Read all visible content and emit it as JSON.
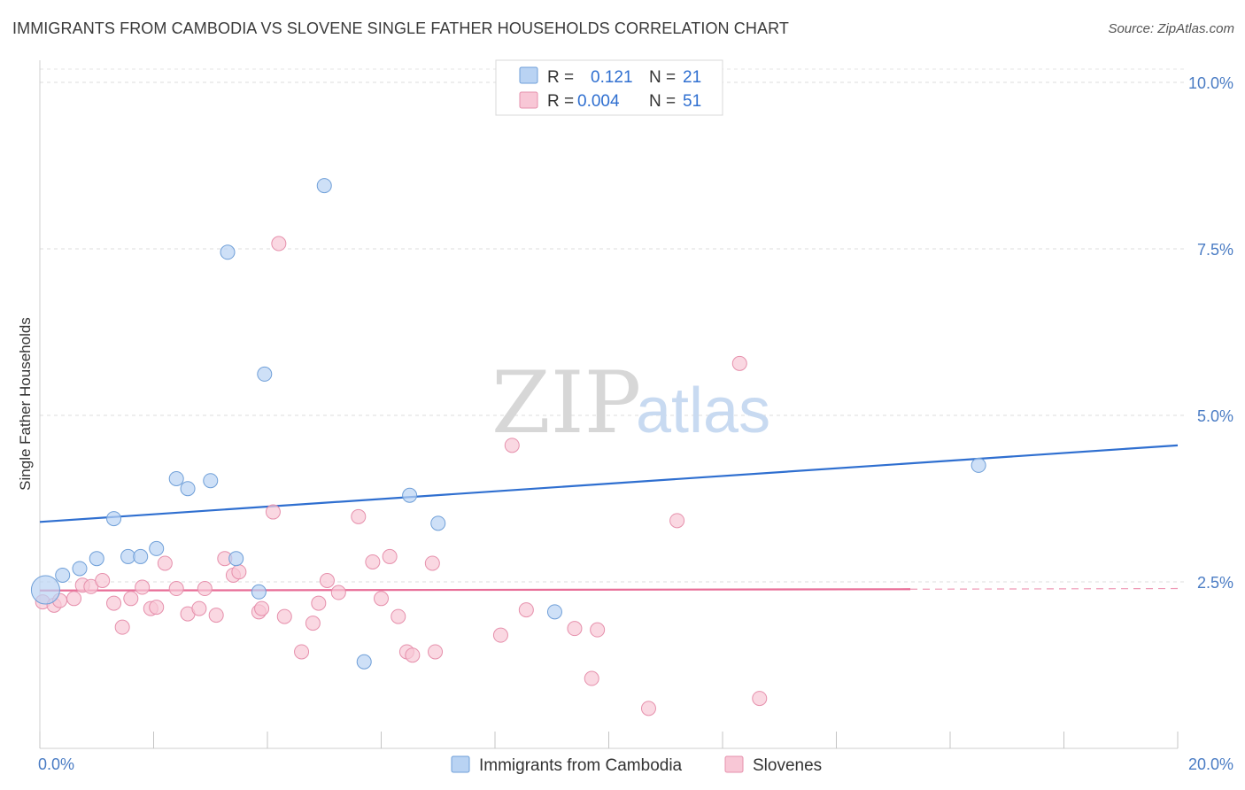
{
  "title": "IMMIGRANTS FROM CAMBODIA VS SLOVENE SINGLE FATHER HOUSEHOLDS CORRELATION CHART",
  "source": "Source: ZipAtlas.com",
  "watermark": {
    "zip": "ZIP",
    "atlas": "atlas"
  },
  "legend": {
    "rows": [
      {
        "r_label": "R =",
        "r_value": "0.121",
        "n_label": "N =",
        "n_value": "21"
      },
      {
        "r_label": "R =",
        "r_value": "0.004",
        "n_label": "N =",
        "n_value": "51"
      }
    ]
  },
  "colors": {
    "cambodia_fill": "#b9d3f3",
    "cambodia_stroke": "#6f9fd8",
    "cambodia_line": "#2f6fd0",
    "slovene_fill": "#f8c7d6",
    "slovene_stroke": "#e690ac",
    "slovene_line": "#e86d97"
  },
  "chart_data": {
    "type": "scatter",
    "title": "IMMIGRANTS FROM CAMBODIA VS SLOVENE SINGLE FATHER HOUSEHOLDS CORRELATION CHART",
    "xlabel": "",
    "ylabel": "Single Father Households",
    "xlim": [
      0,
      20
    ],
    "ylim": [
      0,
      10.2
    ],
    "x_ticks": [
      "0.0%",
      "20.0%"
    ],
    "y_ticks": [
      {
        "value": 2.5,
        "label": "2.5%"
      },
      {
        "value": 5.0,
        "label": "5.0%"
      },
      {
        "value": 7.5,
        "label": "7.5%"
      },
      {
        "value": 10.0,
        "label": "10.0%"
      }
    ],
    "grid": true,
    "legend_position": "bottom-center",
    "series": [
      {
        "name": "Immigrants from Cambodia",
        "points": [
          [
            0.1,
            2.38
          ],
          [
            0.4,
            2.6
          ],
          [
            0.7,
            2.7
          ],
          [
            1.0,
            2.85
          ],
          [
            1.3,
            3.45
          ],
          [
            1.55,
            2.88
          ],
          [
            1.77,
            2.88
          ],
          [
            2.05,
            3.0
          ],
          [
            2.4,
            4.05
          ],
          [
            2.6,
            3.9
          ],
          [
            3.0,
            4.02
          ],
          [
            3.3,
            7.45
          ],
          [
            3.45,
            2.85
          ],
          [
            3.85,
            2.35
          ],
          [
            3.95,
            5.62
          ],
          [
            5.0,
            8.45
          ],
          [
            5.7,
            1.3
          ],
          [
            6.5,
            3.8
          ],
          [
            7.0,
            3.38
          ],
          [
            9.05,
            2.05
          ],
          [
            16.5,
            4.25
          ]
        ],
        "trend": {
          "x": [
            0,
            20
          ],
          "y": [
            3.4,
            4.55
          ]
        }
      },
      {
        "name": "Slovenes",
        "points": [
          [
            0.05,
            2.2
          ],
          [
            0.25,
            2.15
          ],
          [
            0.35,
            2.22
          ],
          [
            0.6,
            2.25
          ],
          [
            0.75,
            2.45
          ],
          [
            0.9,
            2.43
          ],
          [
            1.1,
            2.52
          ],
          [
            1.3,
            2.18
          ],
          [
            1.45,
            1.82
          ],
          [
            1.6,
            2.25
          ],
          [
            1.8,
            2.42
          ],
          [
            1.95,
            2.1
          ],
          [
            2.05,
            2.12
          ],
          [
            2.2,
            2.78
          ],
          [
            2.4,
            2.4
          ],
          [
            2.6,
            2.02
          ],
          [
            2.8,
            2.1
          ],
          [
            2.9,
            2.4
          ],
          [
            3.1,
            2.0
          ],
          [
            3.25,
            2.85
          ],
          [
            3.4,
            2.6
          ],
          [
            3.5,
            2.65
          ],
          [
            3.85,
            2.05
          ],
          [
            3.9,
            2.1
          ],
          [
            4.1,
            3.55
          ],
          [
            4.3,
            1.98
          ],
          [
            4.6,
            1.45
          ],
          [
            4.8,
            1.88
          ],
          [
            4.9,
            2.18
          ],
          [
            5.05,
            2.52
          ],
          [
            5.25,
            2.34
          ],
          [
            5.6,
            3.48
          ],
          [
            5.85,
            2.8
          ],
          [
            6.0,
            2.25
          ],
          [
            6.15,
            2.88
          ],
          [
            6.3,
            1.98
          ],
          [
            6.45,
            1.45
          ],
          [
            6.55,
            1.4
          ],
          [
            6.9,
            2.78
          ],
          [
            6.95,
            1.45
          ],
          [
            8.1,
            1.7
          ],
          [
            8.3,
            4.55
          ],
          [
            8.55,
            2.08
          ],
          [
            9.4,
            1.8
          ],
          [
            9.7,
            1.05
          ],
          [
            9.8,
            1.78
          ],
          [
            10.7,
            0.6
          ],
          [
            11.2,
            3.42
          ],
          [
            12.3,
            5.78
          ],
          [
            12.65,
            0.75
          ],
          [
            4.2,
            7.58
          ]
        ],
        "trend": {
          "x": [
            0,
            15.3
          ],
          "y": [
            2.37,
            2.39
          ]
        },
        "trend_dashed": {
          "x": [
            15.3,
            20
          ],
          "y": [
            2.39,
            2.4
          ]
        }
      }
    ]
  }
}
